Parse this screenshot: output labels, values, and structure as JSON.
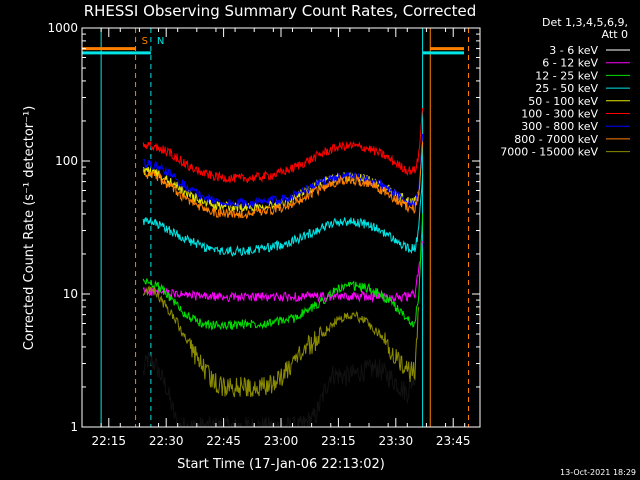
{
  "chart_data": {
    "type": "line",
    "title": "RHESSI Observing Summary Count Rates, Corrected",
    "xlabel": "Start Time (17-Jan-06 22:13:02)",
    "ylabel": "Corrected Count Rate (s⁻¹ detector⁻¹)",
    "ylog": true,
    "ylim": [
      1,
      1000
    ],
    "xlim_minutes": [
      -5,
      99
    ],
    "x_tick_labels": [
      "22:15",
      "22:30",
      "22:45",
      "23:00",
      "23:15",
      "23:30",
      "23:45"
    ],
    "x_tick_minutes": [
      2,
      17,
      32,
      47,
      62,
      77,
      92
    ],
    "y_tick_labels": [
      "1",
      "10",
      "100",
      "1000"
    ],
    "y_tick_values": [
      1,
      10,
      100,
      1000
    ],
    "legend_header": [
      "Det 1,3,4,5,6,9,",
      "Att 0"
    ],
    "footer_date": "13-Oct-2021 18:29",
    "markers": [
      {
        "label": "S",
        "minute": 9,
        "color": "#ff8000"
      },
      {
        "label": "N",
        "minute": 13,
        "color": "#00e5e5"
      }
    ],
    "vertical_lines_minutes": [
      {
        "minute": 0,
        "color": "#00e5e5",
        "dashed": false
      },
      {
        "minute": 9,
        "color": "#ff8000",
        "dashed": true
      },
      {
        "minute": 13,
        "color": "#00e5e5",
        "dashed": true
      },
      {
        "minute": 84,
        "color": "#00e5e5",
        "dashed": false
      },
      {
        "minute": 86,
        "color": "#ff8000",
        "dashed": false
      },
      {
        "minute": 96,
        "color": "#ff8000",
        "dashed": true
      }
    ],
    "series": [
      {
        "name": "3 - 6 keV",
        "color": "#000000",
        "x": [
          11,
          12,
          14,
          17,
          20,
          24,
          28,
          32,
          36,
          40,
          44,
          48,
          52,
          56,
          60,
          64,
          68,
          72,
          76,
          80,
          82,
          83
        ],
        "values": [
          2.5,
          3.2,
          3.0,
          2.0,
          1.0,
          1.0,
          1.0,
          1.0,
          1.0,
          1.0,
          1.0,
          1.0,
          1.0,
          1.2,
          2.5,
          2.4,
          2.6,
          2.8,
          2.3,
          1.8,
          2.5,
          10
        ]
      },
      {
        "name": "6 - 12 keV",
        "color": "#ff00ff",
        "x": [
          11,
          14,
          18,
          22,
          26,
          30,
          34,
          38,
          42,
          46,
          50,
          54,
          58,
          62,
          66,
          70,
          74,
          78,
          80,
          82,
          83,
          84
        ],
        "values": [
          10.5,
          10.5,
          10.0,
          9.8,
          9.6,
          9.5,
          9.5,
          9.5,
          9.5,
          9.5,
          9.5,
          9.6,
          9.5,
          9.5,
          9.6,
          9.6,
          9.5,
          9.5,
          9.5,
          10,
          15,
          25
        ]
      },
      {
        "name": "12 - 25 keV",
        "color": "#00e000",
        "x": [
          11,
          14,
          18,
          22,
          26,
          30,
          34,
          38,
          42,
          46,
          50,
          54,
          58,
          62,
          66,
          70,
          74,
          78,
          80,
          82,
          83,
          84
        ],
        "values": [
          12.5,
          12.0,
          9.5,
          7.0,
          6.0,
          5.8,
          5.8,
          6.0,
          6.0,
          6.2,
          6.5,
          7.5,
          9.0,
          11.0,
          11.5,
          11.0,
          9.5,
          7.5,
          6.5,
          6.0,
          10,
          40
        ]
      },
      {
        "name": "25 - 50 keV",
        "color": "#00e5e5",
        "x": [
          11,
          14,
          18,
          22,
          26,
          30,
          34,
          38,
          42,
          46,
          50,
          54,
          58,
          62,
          66,
          70,
          74,
          78,
          80,
          82,
          83,
          84
        ],
        "values": [
          35,
          34,
          30,
          26,
          23,
          21,
          21,
          21,
          22,
          23,
          25,
          28,
          32,
          35,
          35,
          33,
          29,
          24,
          22,
          22,
          30,
          80
        ]
      },
      {
        "name": "50 - 100 keV",
        "color": "#e5e500",
        "x": [
          11,
          14,
          18,
          22,
          26,
          30,
          34,
          38,
          42,
          46,
          50,
          54,
          58,
          62,
          66,
          70,
          74,
          78,
          80,
          82,
          83,
          84
        ],
        "values": [
          85,
          82,
          70,
          58,
          50,
          46,
          45,
          45,
          46,
          48,
          52,
          60,
          70,
          76,
          76,
          72,
          64,
          54,
          50,
          50,
          60,
          150
        ]
      },
      {
        "name": "100 - 300 keV",
        "color": "#ff0000",
        "x": [
          11,
          14,
          18,
          22,
          26,
          30,
          34,
          38,
          42,
          46,
          50,
          54,
          58,
          62,
          66,
          70,
          74,
          78,
          80,
          82,
          83,
          84
        ],
        "values": [
          130,
          128,
          115,
          95,
          82,
          76,
          74,
          74,
          76,
          80,
          88,
          100,
          115,
          128,
          130,
          124,
          110,
          92,
          85,
          85,
          110,
          250
        ]
      },
      {
        "name": "300 - 800 keV",
        "color": "#0000ff",
        "x": [
          11,
          14,
          18,
          22,
          26,
          30,
          34,
          38,
          42,
          46,
          50,
          54,
          58,
          62,
          66,
          70,
          74,
          78,
          80,
          82,
          83,
          84
        ],
        "values": [
          95,
          93,
          80,
          65,
          55,
          50,
          48,
          48,
          49,
          51,
          55,
          62,
          70,
          76,
          77,
          72,
          64,
          54,
          50,
          48,
          60,
          160
        ]
      },
      {
        "name": "800 - 7000 keV",
        "color": "#ff8000",
        "x": [
          11,
          14,
          18,
          22,
          26,
          30,
          34,
          38,
          42,
          46,
          50,
          54,
          58,
          62,
          66,
          70,
          74,
          78,
          80,
          82,
          83,
          84
        ],
        "values": [
          80,
          78,
          65,
          52,
          45,
          41,
          40,
          40,
          41,
          43,
          47,
          55,
          63,
          70,
          72,
          68,
          59,
          49,
          45,
          44,
          55,
          140
        ]
      },
      {
        "name": "7000 - 15000 keV",
        "color": "#8b8b00",
        "x": [
          11,
          14,
          17,
          20,
          23,
          26,
          29,
          32,
          35,
          38,
          42,
          46,
          50,
          54,
          58,
          62,
          66,
          70,
          74,
          78,
          80,
          82,
          83
        ],
        "values": [
          10.5,
          10.5,
          8.0,
          6.0,
          4.0,
          3.0,
          2.2,
          2.0,
          2.0,
          2.0,
          2.0,
          2.2,
          3.0,
          4.0,
          5.0,
          6.5,
          7.0,
          6.0,
          4.5,
          3.0,
          2.6,
          2.6,
          8.0
        ]
      }
    ]
  }
}
